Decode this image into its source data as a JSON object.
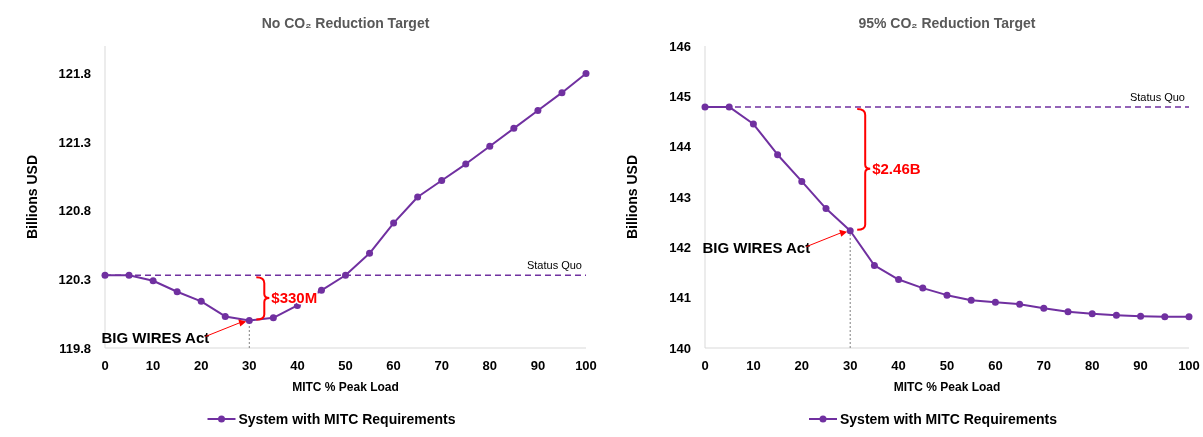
{
  "chart_data": [
    {
      "type": "line",
      "title": "No CO₂ Reduction Target",
      "xlabel": "MITC % Peak Load",
      "ylabel": "Billions USD",
      "x": [
        0,
        5,
        10,
        15,
        20,
        25,
        30,
        35,
        40,
        45,
        50,
        55,
        60,
        65,
        70,
        75,
        80,
        85,
        90,
        95,
        100
      ],
      "series": [
        {
          "name": "System with MITC Requirements",
          "color": "#7030a0",
          "values": [
            120.33,
            120.33,
            120.29,
            120.21,
            120.14,
            120.03,
            120.0,
            120.02,
            120.11,
            120.22,
            120.33,
            120.49,
            120.71,
            120.9,
            121.02,
            121.14,
            121.27,
            121.4,
            121.53,
            121.66,
            121.8
          ]
        }
      ],
      "xlim": [
        0,
        100
      ],
      "xticks": [
        0,
        10,
        20,
        30,
        40,
        50,
        60,
        70,
        80,
        90,
        100
      ],
      "ylim": [
        119.8,
        122.0
      ],
      "yticks": [
        119.8,
        120.3,
        120.8,
        121.3,
        121.8
      ],
      "ref_lines": [
        {
          "axis": "y",
          "value": 120.33,
          "label": "Status Quo",
          "color": "#7030a0",
          "line_style": "dashed"
        },
        {
          "axis": "x",
          "value": 30,
          "label": null,
          "color": "#808080",
          "line_style": "dotted"
        }
      ],
      "annotations": [
        {
          "text": "BIG WIRES Act",
          "x": 30,
          "y": 120.0
        },
        "$330M"
      ],
      "legend": "bottom",
      "marker": "circle",
      "line_style": "solid",
      "grid": false
    },
    {
      "type": "line",
      "title": "95% CO₂ Reduction Target",
      "xlabel": "MITC % Peak Load",
      "ylabel": "Billions USD",
      "x": [
        0,
        5,
        10,
        15,
        20,
        25,
        30,
        35,
        40,
        45,
        50,
        55,
        60,
        65,
        70,
        75,
        80,
        85,
        90,
        95,
        100
      ],
      "series": [
        {
          "name": "System with MITC Requirements",
          "color": "#7030a0",
          "values": [
            144.79,
            144.79,
            144.45,
            143.84,
            143.31,
            142.77,
            142.33,
            141.64,
            141.36,
            141.19,
            141.05,
            140.95,
            140.91,
            140.87,
            140.79,
            140.72,
            140.68,
            140.65,
            140.63,
            140.62,
            140.62
          ]
        }
      ],
      "xlim": [
        0,
        100
      ],
      "xticks": [
        0,
        10,
        20,
        30,
        40,
        50,
        60,
        70,
        80,
        90,
        100
      ],
      "ylim": [
        140,
        146
      ],
      "yticks": [
        140,
        141,
        142,
        143,
        144,
        145,
        146
      ],
      "ref_lines": [
        {
          "axis": "y",
          "value": 144.79,
          "label": "Status Quo",
          "color": "#7030a0",
          "line_style": "dashed"
        },
        {
          "axis": "x",
          "value": 30,
          "label": null,
          "color": "#808080",
          "line_style": "dotted"
        }
      ],
      "annotations": [
        {
          "text": "BIG WIRES Act",
          "x": 30,
          "y": 142.33
        },
        "$2.46B"
      ],
      "legend": "bottom",
      "marker": "circle",
      "line_style": "solid",
      "grid": false
    }
  ]
}
